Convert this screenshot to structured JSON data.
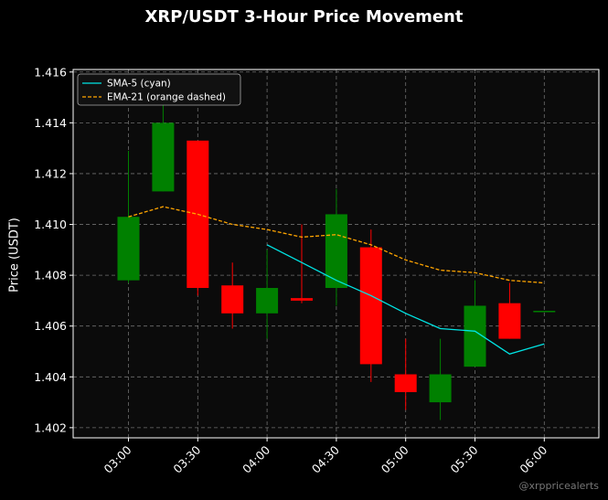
{
  "chart_data": {
    "type": "candlestick",
    "title": "XRP/USDT 3-Hour Price Movement",
    "ylabel": "Price (USDT)",
    "watermark": "@xrppricealerts",
    "x_ticks": [
      "03:00",
      "03:30",
      "04:00",
      "04:30",
      "05:00",
      "05:30",
      "06:00"
    ],
    "y_ticks": [
      "1.402",
      "1.404",
      "1.406",
      "1.408",
      "1.410",
      "1.412",
      "1.414",
      "1.416"
    ],
    "ylim": [
      1.4016,
      1.4161
    ],
    "grid": true,
    "legend_position": "top-left",
    "times": [
      "03:00",
      "03:15",
      "03:30",
      "03:45",
      "04:00",
      "04:15",
      "04:30",
      "04:45",
      "05:00",
      "05:15",
      "05:30",
      "05:45",
      "06:00"
    ],
    "candles": [
      {
        "open": 1.4078,
        "high": 1.4129,
        "low": 1.4077,
        "close": 1.4103
      },
      {
        "open": 1.4113,
        "high": 1.4147,
        "low": 1.4113,
        "close": 1.414
      },
      {
        "open": 1.4133,
        "high": 1.4133,
        "low": 1.4072,
        "close": 1.4075
      },
      {
        "open": 1.4076,
        "high": 1.4085,
        "low": 1.4059,
        "close": 1.4065
      },
      {
        "open": 1.4065,
        "high": 1.409,
        "low": 1.4055,
        "close": 1.4075
      },
      {
        "open": 1.4071,
        "high": 1.41,
        "low": 1.4069,
        "close": 1.407
      },
      {
        "open": 1.4075,
        "high": 1.4114,
        "low": 1.4068,
        "close": 1.4104
      },
      {
        "open": 1.4091,
        "high": 1.4098,
        "low": 1.4038,
        "close": 1.4045
      },
      {
        "open": 1.4041,
        "high": 1.4055,
        "low": 1.4027,
        "close": 1.4034
      },
      {
        "open": 1.403,
        "high": 1.4055,
        "low": 1.4023,
        "close": 1.4041
      },
      {
        "open": 1.4044,
        "high": 1.4078,
        "low": 1.4044,
        "close": 1.4068
      },
      {
        "open": 1.4069,
        "high": 1.4077,
        "low": 1.4055,
        "close": 1.4055
      },
      {
        "open": 1.4066,
        "high": 1.4066,
        "low": 1.4066,
        "close": 1.4066
      }
    ],
    "series": [
      {
        "name": "SMA-5 (cyan)",
        "color": "#00e5e5",
        "style": "solid",
        "values": [
          null,
          null,
          null,
          null,
          1.4092,
          1.4085,
          1.4078,
          1.4072,
          1.4065,
          1.4059,
          1.4058,
          1.4049,
          1.4053
        ]
      },
      {
        "name": "EMA-21 (orange dashed)",
        "color": "#ffa500",
        "style": "dashed",
        "values": [
          1.4103,
          1.4107,
          1.4104,
          1.41,
          1.4098,
          1.4095,
          1.4096,
          1.4092,
          1.4086,
          1.4082,
          1.4081,
          1.4078,
          1.4077
        ]
      }
    ],
    "colors": {
      "up": "#008000",
      "down": "#ff0000",
      "background": "#0b0b0b",
      "grid": "#888888",
      "axes": "#ffffff"
    }
  }
}
